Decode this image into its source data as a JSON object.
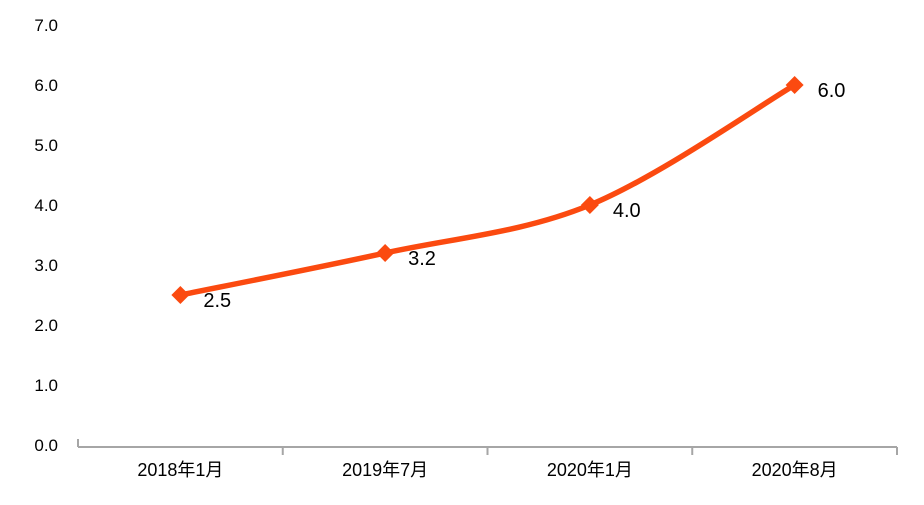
{
  "chart_data": {
    "type": "line",
    "title": "",
    "xlabel": "",
    "ylabel": "",
    "categories": [
      "2018年1月",
      "2019年7月",
      "2020年1月",
      "2020年8月"
    ],
    "series": [
      {
        "name": "",
        "values": [
          2.5,
          3.2,
          4.0,
          6.0
        ],
        "data_labels": [
          "2.5",
          "3.2",
          "4.0",
          "6.0"
        ]
      }
    ],
    "ylim": [
      0.0,
      7.0
    ],
    "y_tick_step": 1.0,
    "y_tick_labels": [
      "0.0",
      "1.0",
      "2.0",
      "3.0",
      "4.0",
      "5.0",
      "6.0",
      "7.0"
    ],
    "grid": false,
    "legend_position": "none",
    "smooth_line": true,
    "marker_shape": "diamond",
    "colors": {
      "line": "#fb4a10",
      "marker": "#fb4a10",
      "axis": "#a6a6a6",
      "tick_label": "#000000",
      "data_label": "#000000",
      "background": "#ffffff"
    }
  }
}
